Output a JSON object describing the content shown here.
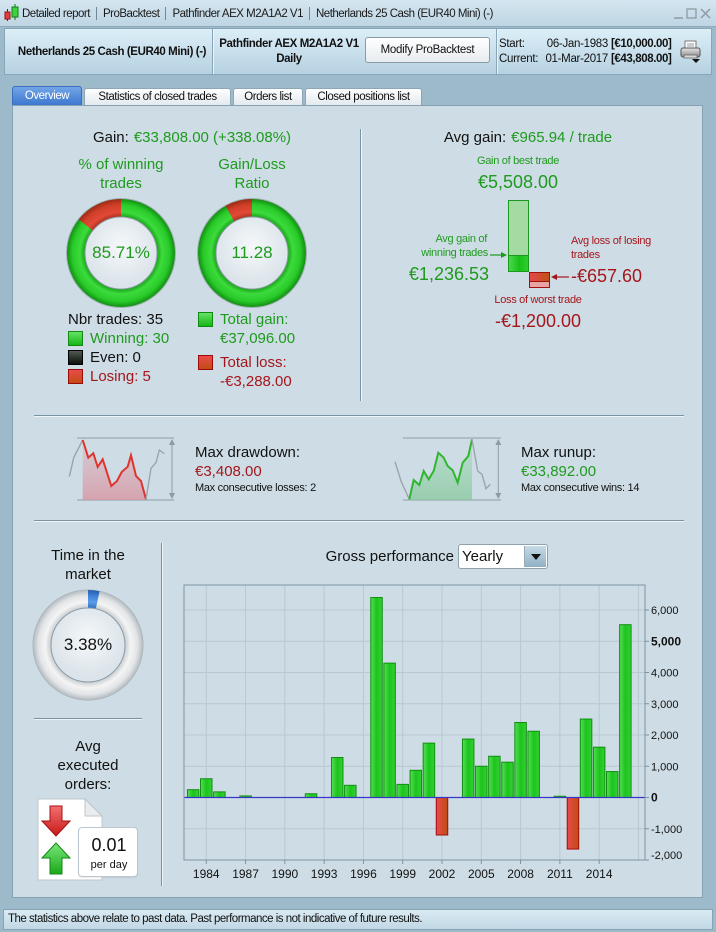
{
  "window": {
    "title_segments": [
      "Detailed report",
      "ProBacktest",
      "Pathfinder AEX M2A1A2 V1",
      "Netherlands 25 Cash (EUR40 Mini) (-)"
    ],
    "app_icon": "candlestick-icon",
    "controls": [
      "minimize-icon",
      "maximize-icon",
      "close-icon"
    ]
  },
  "header": {
    "instrument": "Netherlands 25 Cash (EUR40 Mini) (-)",
    "system_name": "Pathfinder AEX M2A1A2 V1",
    "timeframe": "Daily",
    "modify_button": "Modify ProBacktest",
    "start_label": "Start:",
    "start_date": "06-Jan-1983",
    "start_capital": "[€10,000.00]",
    "current_label": "Current:",
    "current_date": "01-Mar-2017",
    "current_capital": "[€43,808.00]",
    "print_icon": "printer-icon"
  },
  "tabs": [
    {
      "label": "Overview",
      "active": true
    },
    {
      "label": "Statistics of closed trades",
      "active": false
    },
    {
      "label": "Orders list",
      "active": false
    },
    {
      "label": "Closed positions list",
      "active": false
    }
  ],
  "overview": {
    "gain": {
      "label": "Gain:",
      "value": "€33,808.00 (+338.08%)"
    },
    "winning_pct": {
      "title_line1": "% of winning",
      "title_line2": "trades",
      "value_text": "85.71%",
      "value": 85.71
    },
    "gain_loss_ratio": {
      "title_line1": "Gain/Loss",
      "title_line2": "Ratio",
      "value_text": "11.28",
      "value": 11.28
    },
    "trades": {
      "nbr": "Nbr trades: 35",
      "winning": "Winning: 30",
      "even": "Even: 0",
      "losing": "Losing: 5"
    },
    "totals": {
      "gain_label": "Total gain:",
      "gain_value": "€37,096.00",
      "gain_amount": 37096,
      "loss_label": "Total loss:",
      "loss_value": "-€3,288.00",
      "loss_amount": -3288
    },
    "avg_gain": {
      "label": "Avg gain:",
      "value": "€965.94 / trade"
    },
    "best_trade": {
      "label": "Gain of best trade",
      "value": "€5,508.00",
      "amount": 5508
    },
    "avg_winning": {
      "label_line1": "Avg gain of",
      "label_line2": "winning trades",
      "value": "€1,236.53",
      "amount": 1236.53
    },
    "avg_losing": {
      "label_line1": "Avg loss of losing",
      "label_line2": "trades",
      "value": "-€657.60",
      "amount": -657.6
    },
    "worst_trade": {
      "label": "Loss of worst trade",
      "value": "-€1,200.00",
      "amount": -1200
    },
    "drawdown": {
      "title": "Max drawdown:",
      "value": "€3,408.00",
      "sub": "Max consecutive losses: 2"
    },
    "runup": {
      "title": "Max runup:",
      "value": "€33,892.00",
      "sub": "Max consecutive wins: 14"
    },
    "time_in_market": {
      "title_line1": "Time in the",
      "title_line2": "market",
      "value_text": "3.38%",
      "value": 3.38
    },
    "avg_orders": {
      "title_line1": "Avg",
      "title_line2": "executed",
      "title_line3": "orders:",
      "value": "0.01",
      "unit": "per day"
    },
    "gross_performance": {
      "label": "Gross performance",
      "period": "Yearly"
    }
  },
  "colors": {
    "gain_green": "#1e9a1e",
    "loss_red": "#a5161c",
    "accent_blue": "#3d7bd4",
    "bar_green": "#22c922",
    "bar_red": "#cc3322"
  },
  "status_bar": {
    "text": "The statistics above relate to past data. Past performance is not indicative of future results."
  },
  "chart_data": {
    "type": "bar",
    "title": "Gross performance",
    "period": "Yearly",
    "xlabel": "",
    "ylabel": "",
    "x": [
      1983,
      1984,
      1985,
      1986,
      1987,
      1988,
      1989,
      1990,
      1991,
      1992,
      1993,
      1994,
      1995,
      1996,
      1997,
      1998,
      1999,
      2000,
      2001,
      2002,
      2003,
      2004,
      2005,
      2006,
      2007,
      2008,
      2009,
      2010,
      2011,
      2012,
      2013,
      2014,
      2015,
      2016
    ],
    "values": [
      250,
      600,
      180,
      0,
      50,
      0,
      0,
      0,
      0,
      120,
      0,
      1280,
      390,
      0,
      6400,
      4300,
      420,
      870,
      1740,
      -1200,
      0,
      1870,
      1000,
      1320,
      1130,
      2400,
      2120,
      0,
      40,
      -1650,
      2510,
      1610,
      830,
      5530
    ],
    "x_ticks": [
      1984,
      1987,
      1990,
      1993,
      1996,
      1999,
      2002,
      2005,
      2008,
      2011,
      2014
    ],
    "x_tick_labels": [
      "1984",
      "1987",
      "1990",
      "1993",
      "1996",
      "1999",
      "2002",
      "2005",
      "2008",
      "2011",
      "2014"
    ],
    "x_grid": [
      1984,
      1987,
      1990,
      1993,
      1996,
      1999,
      2002,
      2005,
      2008,
      2011,
      2014,
      2017
    ],
    "y_ticks": [
      6000,
      5000,
      4000,
      3000,
      2000,
      1000,
      0,
      -1000,
      -2000
    ],
    "y_tick_labels": [
      "6,000",
      "5,000",
      "4,000",
      "3,000",
      "2,000",
      "1,000",
      "0",
      "-1,000",
      "-2,000"
    ],
    "y_emphasized": [
      5000,
      0
    ],
    "xlim": [
      1982.3,
      2017.5
    ],
    "ylim": [
      -2000,
      6800
    ],
    "grid": true,
    "y_axis_side": "right",
    "legend": "none"
  }
}
